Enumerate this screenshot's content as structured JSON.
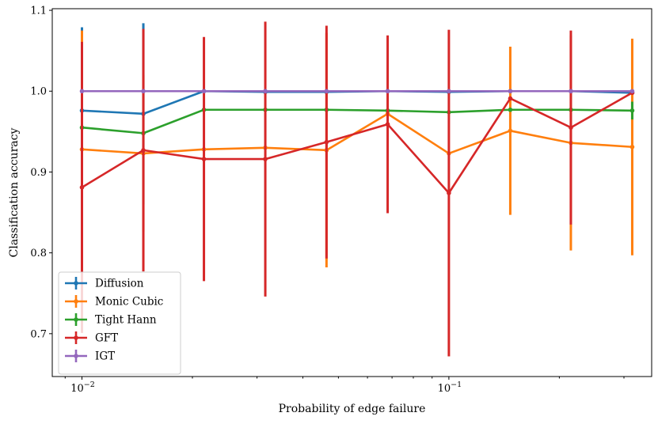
{
  "chart_data": {
    "type": "line",
    "title": "",
    "xlabel": "Probability of edge failure",
    "ylabel": "Classification accuracy",
    "xscale": "log",
    "xlim": [
      0.0083,
      0.357
    ],
    "ylim": [
      0.647,
      1.102
    ],
    "x": [
      0.01,
      0.0147,
      0.0215,
      0.0316,
      0.0464,
      0.0681,
      0.1,
      0.147,
      0.215,
      0.316
    ],
    "x_ticks": [
      {
        "value": 0.01,
        "base": "10",
        "exp": "−2"
      },
      {
        "value": 0.1,
        "base": "10",
        "exp": "−1"
      }
    ],
    "y_ticks": [
      {
        "value": 0.7,
        "label": "0.7"
      },
      {
        "value": 0.8,
        "label": "0.8"
      },
      {
        "value": 0.9,
        "label": "0.9"
      },
      {
        "value": 1.0,
        "label": "1.0"
      },
      {
        "value": 1.1,
        "label": "1.1"
      }
    ],
    "grid": false,
    "legend_position": "lower-left",
    "series": [
      {
        "name": "Diffusion",
        "color": "#1f77b4",
        "values": [
          0.976,
          0.972,
          1.0,
          0.999,
          0.999,
          1.0,
          0.999,
          1.0,
          1.0,
          0.998
        ],
        "errors": [
          0.103,
          0.112,
          0.0,
          0.0,
          0.0,
          0.0,
          0.0,
          0.0,
          0.0,
          0.0
        ]
      },
      {
        "name": "Monic Cubic",
        "color": "#ff7f0e",
        "values": [
          0.928,
          0.923,
          0.928,
          0.93,
          0.927,
          0.972,
          0.923,
          0.951,
          0.936,
          0.931
        ],
        "errors": [
          0.147,
          0.097,
          0.0,
          0.0,
          0.145,
          0.0,
          0.0,
          0.104,
          0.133,
          0.134
        ]
      },
      {
        "name": "Tight Hann",
        "color": "#2ca02c",
        "values": [
          0.955,
          0.948,
          0.977,
          0.977,
          0.977,
          0.976,
          0.974,
          0.977,
          0.977,
          0.976
        ],
        "errors": [
          0.0,
          0.0,
          0.0,
          0.0,
          0.0,
          0.0,
          0.0,
          0.0,
          0.0,
          0.011
        ]
      },
      {
        "name": "GFT",
        "color": "#d62728",
        "values": [
          0.881,
          0.927,
          0.916,
          0.916,
          0.937,
          0.959,
          0.874,
          0.991,
          0.955,
          0.998
        ],
        "errors": [
          0.18,
          0.15,
          0.151,
          0.17,
          0.144,
          0.11,
          0.202,
          0.0,
          0.12,
          0.0
        ]
      },
      {
        "name": "IGT",
        "color": "#9467bd",
        "values": [
          1.0,
          1.0,
          1.0,
          1.0,
          1.0,
          1.0,
          1.0,
          1.0,
          1.0,
          1.0
        ],
        "errors": [
          0.0,
          0.0,
          0.0,
          0.0,
          0.0,
          0.0,
          0.0,
          0.0,
          0.0,
          0.0
        ]
      }
    ]
  }
}
